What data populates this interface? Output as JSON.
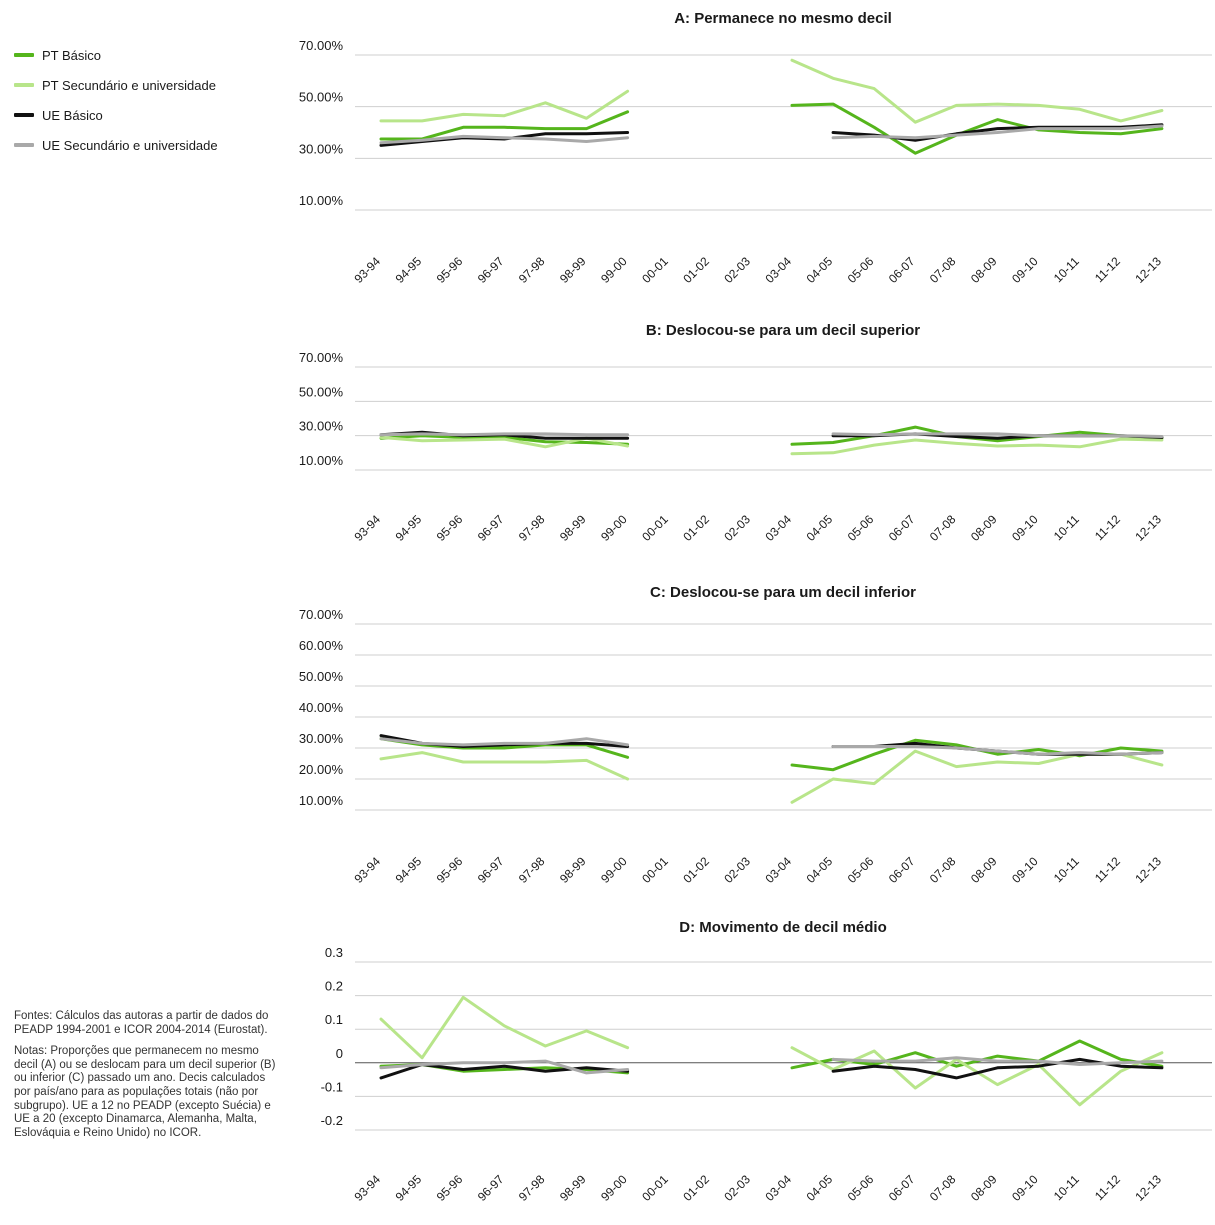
{
  "colors": {
    "pt_basico": "#55b51c",
    "pt_secundario": "#b8e58a",
    "ue_basico": "#111111",
    "ue_secundario": "#a9a9a9"
  },
  "legend": [
    {
      "label": "PT Básico",
      "color": "#55b51c"
    },
    {
      "label": "PT Secundário e universidade",
      "color": "#b8e58a"
    },
    {
      "label": "UE Básico",
      "color": "#111111"
    },
    {
      "label": "UE Secundário e universidade",
      "color": "#a9a9a9"
    }
  ],
  "notes": {
    "sources": "Fontes: Cálculos das autoras a partir de dados do PEADP 1994-2001 e ICOR 2004-2014 (Eurostat).",
    "notes": "Notas: Proporções que permanecem no mesmo decil (A) ou se deslocam para um decil superior (B) ou inferior (C) passado um ano. Decis calculados por país/ano para as populações totais (não por subgrupo). UE a 12 no PEADP (excepto Suécia) e UE a 20 (excepto Dinamarca, Alemanha, Malta, Eslováquia e Reino Unido) no ICOR."
  },
  "chart_data": [
    {
      "type": "line",
      "title": "A: Permanece no mesmo decil",
      "categories": [
        "93-94",
        "94-95",
        "95-96",
        "96-97",
        "97-98",
        "98-99",
        "99-00",
        "00-01",
        "01-02",
        "02-03",
        "03-04",
        "04-05",
        "05-06",
        "06-07",
        "07-08",
        "08-09",
        "09-10",
        "10-11",
        "11-12",
        "12-13"
      ],
      "yticks": [
        10,
        30,
        50,
        70
      ],
      "ytick_labels": [
        "10.00%",
        "30.00%",
        "50.00%",
        "70.00%"
      ],
      "ylim": [
        10,
        70
      ],
      "series": [
        {
          "name": "PT Básico",
          "values": [
            37.5,
            37.5,
            42,
            42,
            41.5,
            41.5,
            48,
            null,
            null,
            null,
            50.5,
            51,
            42,
            32,
            39,
            45,
            41,
            40,
            39.5,
            41.5
          ]
        },
        {
          "name": "PT Secundário e universidade",
          "values": [
            44.5,
            44.5,
            47,
            46.5,
            51.5,
            45.5,
            56,
            null,
            null,
            null,
            68,
            61,
            57,
            44,
            50.5,
            51,
            50.5,
            49,
            44.5,
            48.5
          ]
        },
        {
          "name": "UE Básico",
          "values": [
            35,
            36.5,
            38,
            37.5,
            39.5,
            39.5,
            40,
            null,
            null,
            null,
            null,
            40,
            39,
            37,
            39.5,
            41.5,
            42,
            42,
            42,
            43
          ]
        },
        {
          "name": "UE Secundário e universidade",
          "values": [
            36,
            37,
            38.5,
            38,
            37.5,
            36.5,
            38,
            null,
            null,
            null,
            null,
            38,
            38.5,
            38,
            39,
            40,
            41.5,
            41.5,
            41.5,
            42.5
          ]
        }
      ]
    },
    {
      "type": "line",
      "title": "B: Deslocou-se para um decil superior",
      "categories": [
        "93-94",
        "94-95",
        "95-96",
        "96-97",
        "97-98",
        "98-99",
        "99-00",
        "00-01",
        "01-02",
        "02-03",
        "03-04",
        "04-05",
        "05-06",
        "06-07",
        "07-08",
        "08-09",
        "09-10",
        "10-11",
        "11-12",
        "12-13"
      ],
      "yticks": [
        10,
        30,
        50,
        70
      ],
      "ytick_labels": [
        "10.00%",
        "30.00%",
        "50.00%",
        "70.00%"
      ],
      "ylim": [
        10,
        70
      ],
      "series": [
        {
          "name": "PT Básico",
          "values": [
            28.5,
            30,
            29,
            29,
            26.5,
            26,
            25,
            null,
            null,
            null,
            25,
            26,
            30,
            35,
            29.5,
            27,
            29.5,
            32,
            30,
            28.5
          ]
        },
        {
          "name": "PT Secundário e universidade",
          "values": [
            29,
            27,
            27.5,
            28,
            23.5,
            28.5,
            24,
            null,
            null,
            null,
            19.5,
            20,
            24.5,
            27.5,
            25.5,
            24,
            24.5,
            23.5,
            28,
            27.5
          ]
        },
        {
          "name": "UE Básico",
          "values": [
            30.5,
            32,
            30,
            30.5,
            28.5,
            28.5,
            28.5,
            null,
            null,
            null,
            null,
            30,
            30,
            31,
            29.5,
            28.5,
            30,
            30,
            30,
            29
          ]
        },
        {
          "name": "UE Secundário e universidade",
          "values": [
            30.5,
            31,
            30.5,
            31,
            31,
            30.5,
            30.5,
            null,
            null,
            null,
            null,
            31,
            30.5,
            31,
            31,
            31,
            30,
            30,
            30,
            29.5
          ]
        }
      ]
    },
    {
      "type": "line",
      "title": "C: Deslocou-se para um decil inferior",
      "categories": [
        "93-94",
        "94-95",
        "95-96",
        "96-97",
        "97-98",
        "98-99",
        "99-00",
        "00-01",
        "01-02",
        "02-03",
        "03-04",
        "04-05",
        "05-06",
        "06-07",
        "07-08",
        "08-09",
        "09-10",
        "10-11",
        "11-12",
        "12-13"
      ],
      "yticks": [
        10,
        20,
        30,
        40,
        50,
        60,
        70
      ],
      "ytick_labels": [
        "10.00%",
        "20.00%",
        "30.00%",
        "40.00%",
        "50.00%",
        "60.00%",
        "70.00%"
      ],
      "ylim": [
        10,
        70
      ],
      "series": [
        {
          "name": "PT Básico",
          "values": [
            33,
            31,
            30,
            30,
            31,
            31,
            27,
            null,
            null,
            null,
            24.5,
            23,
            28,
            32.5,
            31,
            28,
            29.5,
            27.5,
            30,
            29
          ]
        },
        {
          "name": "PT Secundário e universidade",
          "values": [
            26.5,
            28.5,
            25.5,
            25.5,
            25.5,
            26,
            20,
            null,
            null,
            null,
            12.5,
            20,
            18.5,
            29,
            24,
            25.5,
            25,
            28,
            28,
            24.5
          ]
        },
        {
          "name": "UE Básico",
          "values": [
            34,
            31.5,
            30.5,
            31,
            31.5,
            31.5,
            30.5,
            null,
            null,
            null,
            null,
            30.5,
            30.5,
            31.5,
            30,
            29,
            28,
            28,
            28,
            28.5
          ]
        },
        {
          "name": "UE Secundário e universidade",
          "values": [
            33,
            31.5,
            31,
            31.5,
            31.5,
            33,
            31,
            null,
            null,
            null,
            null,
            30.5,
            30.5,
            30.5,
            30,
            29,
            28,
            28.5,
            28,
            28.5
          ]
        }
      ]
    },
    {
      "type": "line",
      "title": "D: Movimento de decil médio",
      "categories": [
        "93-94",
        "94-95",
        "95-96",
        "96-97",
        "97-98",
        "98-99",
        "99-00",
        "00-01",
        "01-02",
        "02-03",
        "03-04",
        "04-05",
        "05-06",
        "06-07",
        "07-08",
        "08-09",
        "09-10",
        "10-11",
        "11-12",
        "12-13"
      ],
      "yticks": [
        -0.2,
        -0.1,
        0,
        0.1,
        0.2,
        0.3
      ],
      "ytick_labels": [
        "-0.2",
        "-0.1",
        "0",
        "0.1",
        "0.2",
        "0.3"
      ],
      "ylim": [
        -0.2,
        0.3
      ],
      "series": [
        {
          "name": "PT Básico",
          "values": [
            -0.01,
            -0.005,
            -0.025,
            -0.02,
            -0.015,
            -0.02,
            -0.03,
            null,
            null,
            null,
            -0.015,
            0.01,
            -0.005,
            0.03,
            -0.01,
            0.02,
            0.005,
            0.065,
            0.01,
            -0.01
          ]
        },
        {
          "name": "PT Secundário e universidade",
          "values": [
            0.13,
            0.015,
            0.195,
            0.11,
            0.05,
            0.095,
            0.045,
            null,
            null,
            null,
            0.045,
            -0.02,
            0.035,
            -0.075,
            0.01,
            -0.065,
            -0.005,
            -0.125,
            -0.025,
            0.03
          ]
        },
        {
          "name": "UE Básico",
          "values": [
            -0.045,
            -0.005,
            -0.02,
            -0.01,
            -0.025,
            -0.015,
            -0.025,
            null,
            null,
            null,
            null,
            -0.025,
            -0.01,
            -0.02,
            -0.045,
            -0.015,
            -0.01,
            0.01,
            -0.01,
            -0.015
          ]
        },
        {
          "name": "UE Secundário e universidade",
          "values": [
            -0.015,
            -0.005,
            0,
            0,
            0.005,
            -0.03,
            -0.02,
            null,
            null,
            null,
            null,
            0.01,
            0.005,
            0.005,
            0.015,
            0.005,
            0.005,
            -0.005,
            0,
            0.005
          ]
        }
      ]
    }
  ]
}
